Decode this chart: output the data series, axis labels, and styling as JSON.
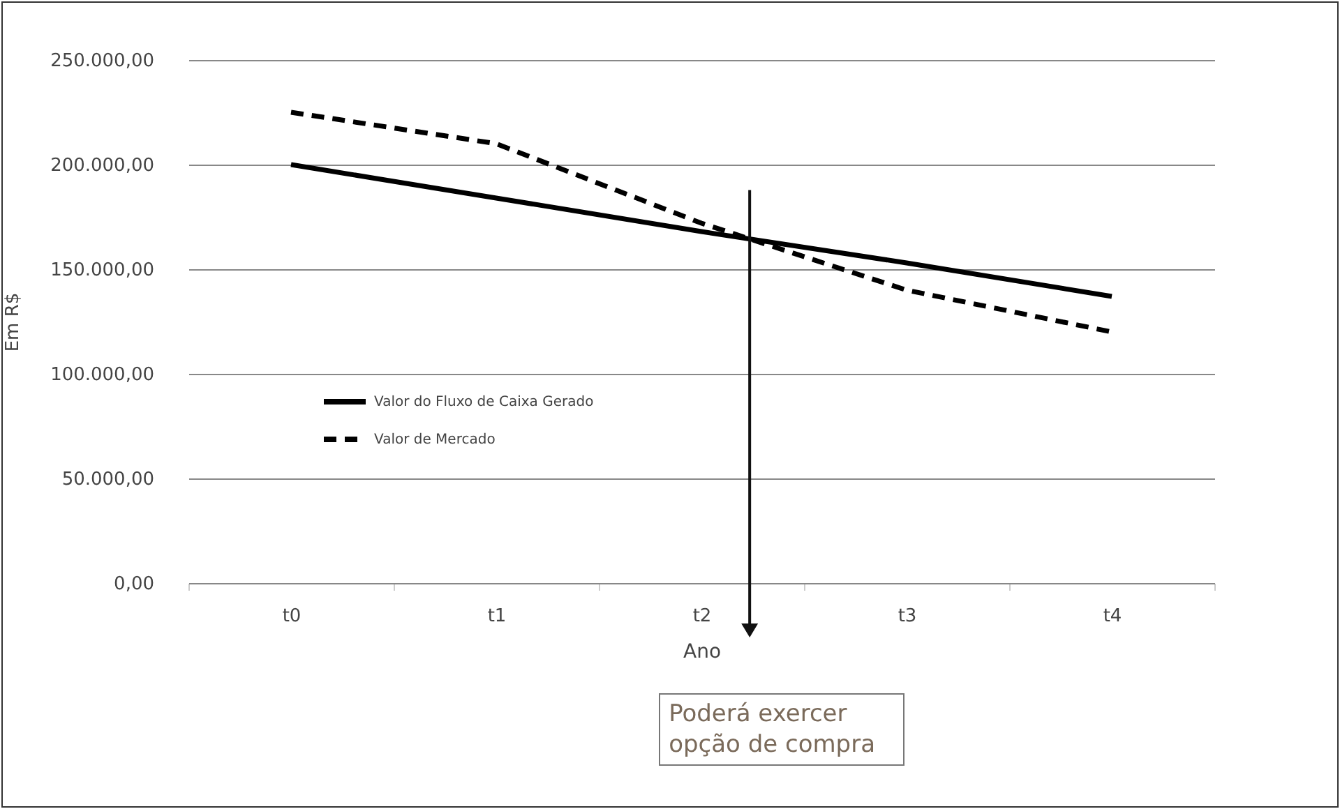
{
  "chart_data": {
    "type": "line",
    "xlabel": "Ano",
    "ylabel": "Em R$",
    "categories": [
      "t0",
      "t1",
      "t2",
      "t3",
      "t4"
    ],
    "series": [
      {
        "name": "Valor do Fluxo de Caixa Gerado",
        "color": "#000000",
        "line_style": "solid",
        "values": [
          200000,
          184000,
          168000,
          153000,
          137000
        ]
      },
      {
        "name": "Valor de Mercado",
        "color": "#000000",
        "line_style": "dashed",
        "values": [
          225000,
          210000,
          172000,
          140000,
          120000
        ]
      }
    ],
    "ylim": [
      0,
      250000
    ],
    "yticks": [
      {
        "value": 0,
        "label": "0,00"
      },
      {
        "value": 50000,
        "label": "50.000,00"
      },
      {
        "value": 100000,
        "label": "100.000,00"
      },
      {
        "value": 150000,
        "label": "150.000,00"
      },
      {
        "value": 200000,
        "label": "200.000,00"
      },
      {
        "value": 250000,
        "label": "250.000,00"
      }
    ],
    "grid": "y",
    "legend": "left",
    "marker": "none",
    "annotations": [
      "Poderá exercer opção de compra"
    ]
  }
}
